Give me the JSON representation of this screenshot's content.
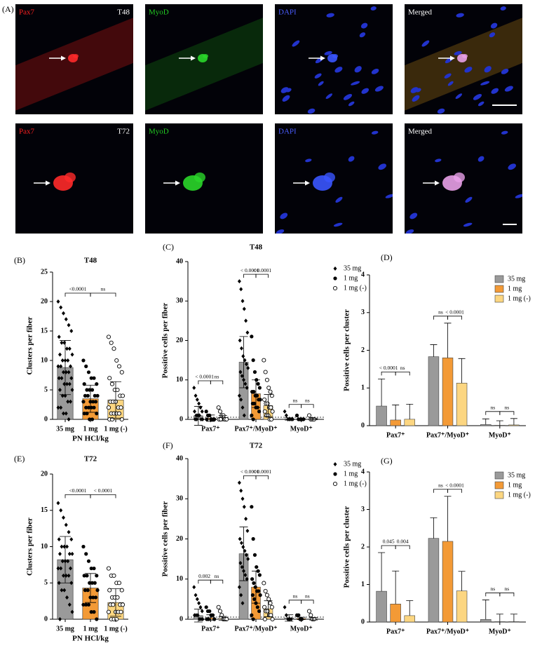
{
  "panel_a": {
    "label": "(A)",
    "rows": [
      {
        "time": "T48",
        "channels": [
          "Pax7",
          "MyoD",
          "DAPI",
          "Merged"
        ]
      },
      {
        "time": "T72",
        "channels": [
          "Pax7",
          "MyoD",
          "DAPI",
          "Merged"
        ]
      }
    ]
  },
  "chart_data": [
    {
      "type": "bar_scatter",
      "panel": "(B)",
      "title": "T48",
      "y_label": "Clusters per fiber",
      "x_label": "PN HCl/kg",
      "categories": [
        "35 mg",
        "1 mg",
        "1 mg (-)"
      ],
      "values": [
        8.8,
        3.5,
        3.3
      ],
      "errors": [
        4.6,
        2.3,
        3.1
      ],
      "colors": [
        "#9a9a9a",
        "#f39a36",
        "#fcd681"
      ],
      "markers": [
        "diamond",
        "circle",
        "open-circle"
      ],
      "points": [
        [
          20,
          19,
          18,
          17,
          16,
          15,
          14,
          13,
          13,
          12,
          12,
          11,
          11,
          10,
          10,
          10,
          9,
          9,
          9,
          8,
          8,
          8,
          7,
          7,
          7,
          6,
          6,
          6,
          5,
          5,
          4,
          4,
          3,
          3,
          2,
          2,
          1,
          1,
          0
        ],
        [
          10,
          9,
          8,
          7,
          7,
          6,
          6,
          5,
          5,
          5,
          4,
          4,
          4,
          4,
          3,
          3,
          3,
          3,
          2,
          2,
          2,
          2,
          1,
          1,
          1,
          0,
          0
        ],
        [
          14,
          13,
          12,
          10,
          9,
          8,
          7,
          6,
          5,
          5,
          4,
          4,
          3,
          3,
          3,
          2,
          2,
          2,
          1,
          1,
          1,
          1,
          0,
          0,
          0
        ]
      ],
      "comparisons": [
        "<0.0001",
        "ns"
      ],
      "ylim": [
        0,
        25
      ],
      "yticks": [
        0,
        5,
        10,
        15,
        20,
        25
      ]
    },
    {
      "type": "grouped_bar",
      "panel": "(C)",
      "title": "T48",
      "y_label": "Possitive cells per fiber",
      "groups": [
        "Pax7⁺",
        "Pax7⁺/MyoD⁺",
        "MyoD⁺"
      ],
      "series": [
        {
          "name": "35 mg",
          "color": "#9a9a9a",
          "marker": "diamond",
          "values": [
            0.9,
            14.5,
            0.1
          ],
          "errors": [
            2.4,
            6.5,
            0.3
          ],
          "points": [
            [
              8,
              6,
              5,
              4,
              3,
              2,
              2,
              1,
              1,
              1,
              0,
              0,
              0,
              0
            ],
            [
              35,
              33,
              30,
              28,
              25,
              22,
              20,
              18,
              16,
              15,
              14,
              13,
              12,
              11,
              10,
              9,
              8,
              6,
              5,
              3,
              1
            ],
            [
              2,
              1,
              0,
              0,
              0,
              0
            ]
          ]
        },
        {
          "name": "1 mg",
          "color": "#f39a36",
          "marker": "circle",
          "values": [
            0.3,
            6.5,
            0.1
          ],
          "errors": [
            0.8,
            3.5,
            0.2
          ],
          "points": [
            [
              2,
              1,
              1,
              0,
              0,
              0,
              0
            ],
            [
              21,
              15,
              12,
              10,
              9,
              8,
              7,
              7,
              6,
              6,
              5,
              5,
              4,
              4,
              3,
              3,
              2,
              1,
              0
            ],
            [
              1,
              0,
              0,
              0,
              0
            ]
          ]
        },
        {
          "name": "1 mg (-)",
          "color": "#fcd681",
          "marker": "open-circle",
          "values": [
            0.3,
            3.5,
            0.1
          ],
          "errors": [
            0.7,
            2.8,
            0.2
          ],
          "points": [
            [
              3,
              2,
              1,
              1,
              0,
              0,
              0,
              0
            ],
            [
              15,
              12,
              10,
              8,
              7,
              6,
              5,
              4,
              4,
              3,
              3,
              2,
              2,
              1,
              1,
              0,
              0
            ],
            [
              1,
              0,
              0,
              0
            ]
          ]
        }
      ],
      "comparisons": [
        [
          "< 0.0001",
          "ns"
        ],
        [
          "< 0.0001",
          "< 0.0001"
        ],
        [
          "ns",
          "ns"
        ]
      ],
      "ylim": [
        0,
        40
      ],
      "yticks": [
        0,
        10,
        20,
        30,
        40
      ]
    },
    {
      "type": "grouped_bar",
      "panel": "(D)",
      "y_label": "Possitive cells per cluster",
      "groups": [
        "Pax7⁺",
        "Pax7⁺/MyoD⁺",
        "MyoD⁺"
      ],
      "series": [
        {
          "name": "35 mg",
          "color": "#9a9a9a",
          "values": [
            0.52,
            1.83,
            0.03
          ],
          "errors": [
            0.72,
            0.32,
            0.15
          ]
        },
        {
          "name": "1 mg",
          "color": "#f39a36",
          "values": [
            0.15,
            1.8,
            0.01
          ],
          "errors": [
            0.4,
            0.92,
            0.12
          ]
        },
        {
          "name": "1 mg (-)",
          "color": "#fcd681",
          "values": [
            0.17,
            1.13,
            0.02
          ],
          "errors": [
            0.4,
            0.65,
            0.17
          ]
        }
      ],
      "comparisons": [
        [
          "< 0.0001",
          "ns"
        ],
        [
          "ns",
          "< 0.0001"
        ],
        [
          "ns",
          "ns"
        ]
      ],
      "ylim": [
        0,
        4
      ],
      "yticks": [
        0,
        1,
        2,
        3,
        4
      ]
    },
    {
      "type": "bar_scatter",
      "panel": "(E)",
      "title": "T72",
      "y_label": "Clusters per fiber",
      "x_label": "PN HCl/kg",
      "categories": [
        "35 mg",
        "1 mg",
        "1 mg (-)"
      ],
      "values": [
        8.2,
        4.3,
        2.3
      ],
      "errors": [
        3.2,
        2.0,
        1.9
      ],
      "colors": [
        "#9a9a9a",
        "#f39a36",
        "#fcd681"
      ],
      "markers": [
        "diamond",
        "circle",
        "open-circle"
      ],
      "points": [
        [
          16,
          15,
          14,
          13,
          12,
          11,
          11,
          10,
          10,
          10,
          9,
          9,
          9,
          8,
          8,
          8,
          7,
          7,
          7,
          6,
          6,
          6,
          5,
          5,
          4,
          4,
          3,
          2,
          1,
          0
        ],
        [
          10,
          9,
          8,
          7,
          7,
          6,
          6,
          6,
          5,
          5,
          5,
          4,
          4,
          4,
          3,
          3,
          3,
          2,
          2,
          2,
          1,
          1,
          0
        ],
        [
          7,
          6,
          6,
          5,
          5,
          4,
          4,
          3,
          3,
          3,
          2,
          2,
          2,
          2,
          1,
          1,
          1,
          1,
          0,
          0,
          0
        ]
      ],
      "comparisons": [
        "<0.0001",
        "< 0.0001"
      ],
      "ylim": [
        0,
        20
      ],
      "yticks": [
        0,
        5,
        10,
        15,
        20
      ]
    },
    {
      "type": "grouped_bar",
      "panel": "(F)",
      "title": "T72",
      "y_label": "Possitive cells per fiber",
      "groups": [
        "Pax7⁺",
        "Pax7⁺/MyoD⁺",
        "MyoD⁺"
      ],
      "series": [
        {
          "name": "35 mg",
          "color": "#9a9a9a",
          "marker": "diamond",
          "values": [
            0.9,
            16.3,
            0.3
          ],
          "errors": [
            1.6,
            6.7,
            0.8
          ],
          "points": [
            [
              8,
              6,
              5,
              4,
              3,
              2,
              1,
              1,
              1,
              0,
              0,
              0
            ],
            [
              34,
              32,
              30,
              28,
              25,
              22,
              20,
              19,
              18,
              17,
              16,
              15,
              14,
              13,
              12,
              11,
              10,
              8,
              6,
              4
            ],
            [
              3,
              1,
              0,
              0,
              0
            ]
          ]
        },
        {
          "name": "1 mg",
          "color": "#f39a36",
          "marker": "circle",
          "values": [
            0.4,
            8.0,
            0.2
          ],
          "errors": [
            0.7,
            4.0,
            0.3
          ],
          "points": [
            [
              3,
              2,
              2,
              1,
              1,
              0,
              0,
              0
            ],
            [
              28,
              20,
              16,
              13,
              12,
              11,
              10,
              9,
              8,
              7,
              7,
              6,
              6,
              5,
              4,
              3,
              2,
              1,
              0
            ],
            [
              1,
              1,
              0,
              0
            ]
          ]
        },
        {
          "name": "1 mg (-)",
          "color": "#fcd681",
          "marker": "open-circle",
          "values": [
            0.2,
            2.6,
            0.1
          ],
          "errors": [
            0.5,
            2.0,
            0.3
          ],
          "points": [
            [
              3,
              2,
              1,
              0,
              0,
              0
            ],
            [
              9,
              7,
              6,
              5,
              4,
              3,
              3,
              2,
              2,
              1,
              1,
              0,
              0
            ],
            [
              2,
              1,
              0,
              0
            ]
          ]
        }
      ],
      "comparisons": [
        [
          "0.002",
          "ns"
        ],
        [
          "< 0.0001",
          "< 0.0001"
        ],
        [
          "ns",
          "ns"
        ]
      ],
      "ylim": [
        0,
        40
      ],
      "yticks": [
        0,
        10,
        20,
        30,
        40
      ]
    },
    {
      "type": "grouped_bar",
      "panel": "(G)",
      "y_label": "Possitive cells per cluster",
      "groups": [
        "Pax7⁺",
        "Pax7⁺/MyoD⁺",
        "MyoD⁺"
      ],
      "series": [
        {
          "name": "35 mg",
          "color": "#9a9a9a",
          "values": [
            0.82,
            2.23,
            0.07
          ],
          "errors": [
            1.03,
            0.55,
            0.52
          ]
        },
        {
          "name": "1 mg",
          "color": "#f39a36",
          "values": [
            0.48,
            2.15,
            0.01
          ],
          "errors": [
            0.88,
            1.2,
            0.2
          ]
        },
        {
          "name": "1 mg (-)",
          "color": "#fcd681",
          "values": [
            0.17,
            0.83,
            0.01
          ],
          "errors": [
            0.4,
            0.52,
            0.2
          ]
        }
      ],
      "comparisons": [
        [
          "0.045",
          "0.004"
        ],
        [
          "ns",
          "< 0.0001"
        ],
        [
          "ns",
          "ns"
        ]
      ],
      "ylim": [
        0,
        4
      ],
      "yticks": [
        0,
        1,
        2,
        3,
        4
      ]
    }
  ]
}
